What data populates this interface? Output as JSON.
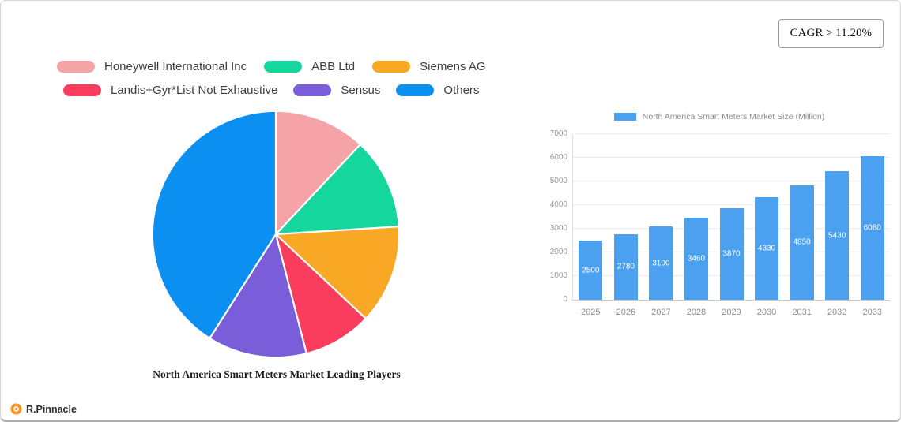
{
  "badge": {
    "cagr_label": "CAGR > 11.20%"
  },
  "brand": {
    "name": "R.Pinnacle",
    "color": "#f7941e"
  },
  "chart_data": [
    {
      "type": "pie",
      "title": "North America Smart Meters Market Leading Players",
      "legend_position": "top-left",
      "slices": [
        {
          "label": "Honeywell International Inc",
          "value": 12,
          "color": "#f5a3a6"
        },
        {
          "label": "ABB Ltd",
          "value": 12,
          "color": "#15d79e"
        },
        {
          "label": "Siemens AG",
          "value": 13,
          "color": "#f8a824"
        },
        {
          "label": "Landis+Gyr*List Not Exhaustive",
          "value": 9,
          "color": "#fa3d5d"
        },
        {
          "label": "Sensus",
          "value": 13,
          "color": "#7a5dd8"
        },
        {
          "label": "Others",
          "value": 41,
          "color": "#0b90f1"
        }
      ]
    },
    {
      "type": "bar",
      "legend": "North America Smart Meters Market Size (Million)",
      "bar_color": "#4ba1ef",
      "value_label_color": "#ffffff",
      "categories": [
        "2025",
        "2026",
        "2027",
        "2028",
        "2029",
        "2030",
        "2031",
        "2032",
        "2033"
      ],
      "values": [
        2500,
        2780,
        3100,
        3460,
        3870,
        4330,
        4850,
        5430,
        6080
      ],
      "ylim": [
        0,
        7000
      ],
      "ytick_step": 1000,
      "grid": true
    }
  ]
}
